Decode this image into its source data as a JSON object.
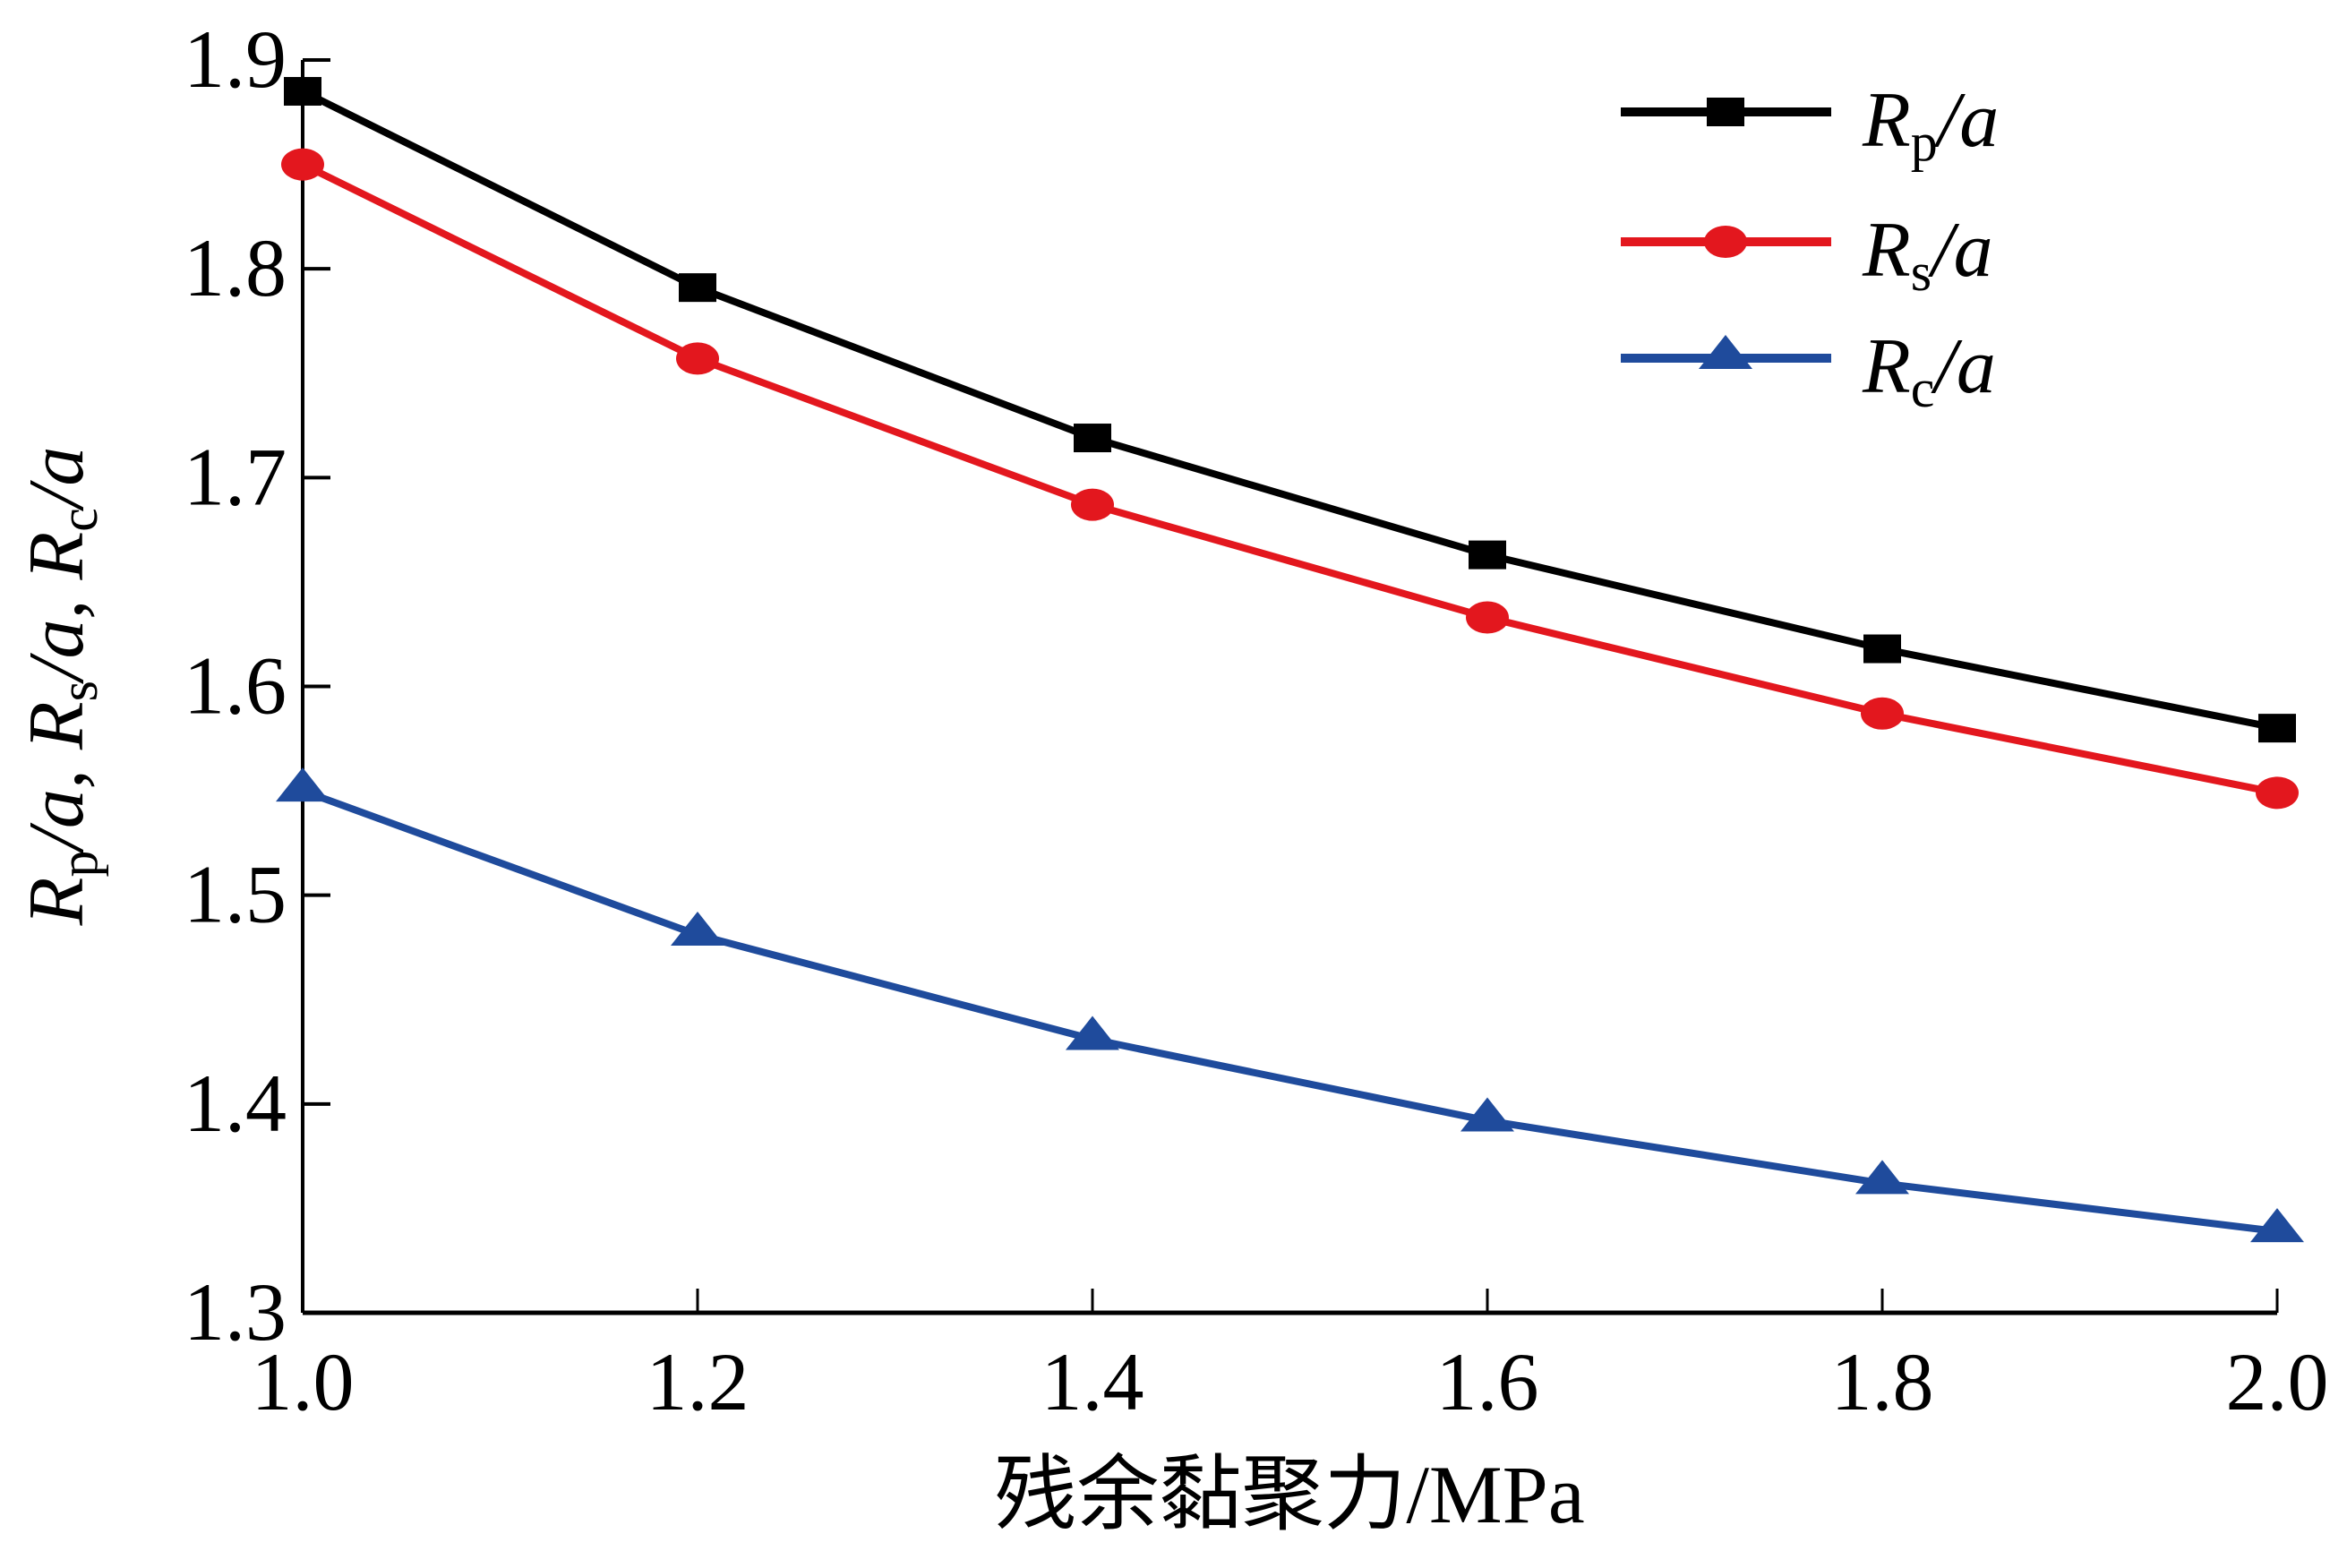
{
  "chart_data": {
    "type": "line",
    "title": "",
    "xlabel": "残余黏聚力/MPa",
    "ylabel": "Rp/a, Rs/a, Rc/a",
    "ylabel_parts": [
      {
        "main": "R",
        "sub": "p",
        "tail": "/a, "
      },
      {
        "main": "R",
        "sub": "s",
        "tail": "/a, "
      },
      {
        "main": "R",
        "sub": "c",
        "tail": "/a"
      }
    ],
    "x": [
      1.0,
      1.2,
      1.4,
      1.6,
      1.8,
      2.0
    ],
    "xlim": [
      1.0,
      2.0
    ],
    "ylim": [
      1.3,
      1.9
    ],
    "xticks": [
      1.0,
      1.2,
      1.4,
      1.6,
      1.8,
      2.0
    ],
    "xtick_labels": [
      "1.0",
      "1.2",
      "1.4",
      "1.6",
      "1.8",
      "2.0"
    ],
    "yticks": [
      1.3,
      1.4,
      1.5,
      1.6,
      1.7,
      1.8,
      1.9
    ],
    "ytick_labels": [
      "1.3",
      "1.4",
      "1.5",
      "1.6",
      "1.7",
      "1.8",
      "1.9"
    ],
    "grid": false,
    "legend_position": "top-right",
    "series": [
      {
        "name": "Rp/a",
        "label_main": "R",
        "label_sub": "p",
        "label_tail": "/a",
        "color": "#000000",
        "marker": "square",
        "values": [
          1.885,
          1.791,
          1.719,
          1.663,
          1.618,
          1.58
        ]
      },
      {
        "name": "Rs/a",
        "label_main": "R",
        "label_sub": "s",
        "label_tail": "/a",
        "color": "#e3171e",
        "marker": "circle",
        "values": [
          1.85,
          1.757,
          1.687,
          1.633,
          1.587,
          1.549
        ]
      },
      {
        "name": "Rc/a",
        "label_main": "R",
        "label_sub": "c",
        "label_tail": "/a",
        "color": "#1f4b9c",
        "marker": "triangle",
        "values": [
          1.55,
          1.481,
          1.431,
          1.392,
          1.362,
          1.339
        ]
      }
    ]
  }
}
